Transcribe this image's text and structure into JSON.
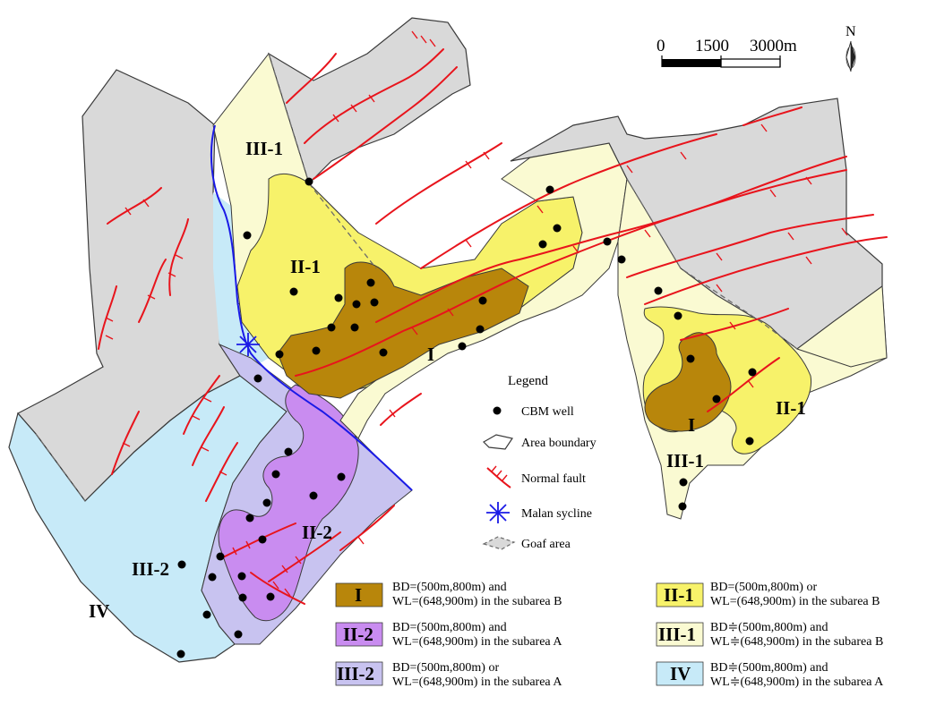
{
  "colors": {
    "zone_I": "#b8860b",
    "zone_II_1": "#f7f26a",
    "zone_II_2": "#c98cf0",
    "zone_III_1": "#fafad2",
    "zone_III_2": "#c8c3f0",
    "zone_IV": "#c7eaf8",
    "goaf": "#d9d9d9",
    "fault": "#e8141c",
    "syncline": "#1a1ae6",
    "well": "#000000",
    "boundary": "#3a3a3a"
  },
  "scale_bar": {
    "ticks": [
      "0",
      "1500",
      "3000m"
    ]
  },
  "north_arrow": {
    "label": "N"
  },
  "map_labels": {
    "zone_III_1_north": "III-1",
    "zone_II_1_north": "II-1",
    "zone_I_central": "I",
    "zone_I_east": "I",
    "zone_II_1_east": "II-1",
    "zone_III_1_east": "III-1",
    "zone_II_2": "II-2",
    "zone_III_2": "III-2",
    "zone_IV": "IV"
  },
  "legend": {
    "title": "Legend",
    "symbols": [
      {
        "icon": "well-dot-icon",
        "label": "CBM well"
      },
      {
        "icon": "area-boundary-icon",
        "label": "Area boundary"
      },
      {
        "icon": "normal-fault-icon",
        "label": "Normal fault"
      },
      {
        "icon": "syncline-icon",
        "label": "Malan sycline"
      },
      {
        "icon": "goaf-area-icon",
        "label": "Goaf area"
      }
    ],
    "zones": [
      {
        "code": "I",
        "color": "#b8860b",
        "line1": "BD=(500m,800m) and",
        "line2": "WL=(648,900m) in the subarea B"
      },
      {
        "code": "II-1",
        "color": "#f7f26a",
        "line1": "BD=(500m,800m) or",
        "line2": "WL=(648,900m) in the subarea B"
      },
      {
        "code": "II-2",
        "color": "#c98cf0",
        "line1": "BD=(500m,800m) and",
        "line2": "WL=(648,900m) in the subarea A"
      },
      {
        "code": "III-1",
        "color": "#fafad2",
        "line1": "BD≑(500m,800m) and",
        "line2": "WL≑(648,900m) in the subarea B"
      },
      {
        "code": "III-2",
        "color": "#c8c3f0",
        "line1": "BD=(500m,800m) or",
        "line2": "WL=(648,900m) in the subarea A"
      },
      {
        "code": "IV",
        "color": "#c7eaf8",
        "line1": "BD≑(500m,800m) and",
        "line2": "WL≑(648,900m) in the subarea A"
      }
    ]
  }
}
